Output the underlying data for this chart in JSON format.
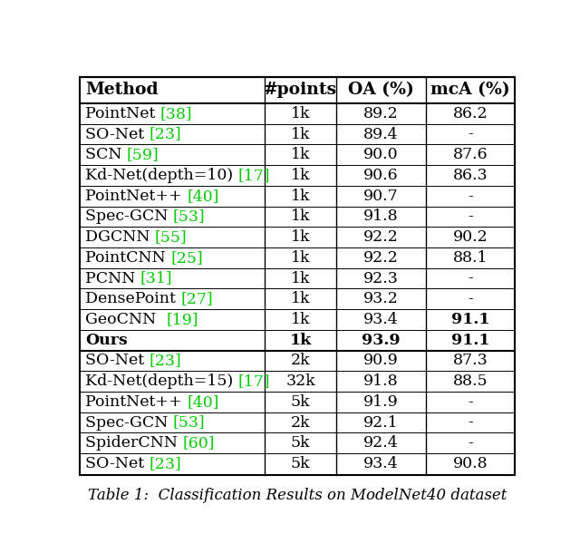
{
  "title": "Table 1:  Classification Results on ModelNet40 dataset",
  "headers": [
    "Method",
    "#points",
    "OA (%)",
    "mcA (%)"
  ],
  "section1": [
    {
      "method_black": "PointNet ",
      "method_green": "[38]",
      "points": "1k",
      "oa": "89.2",
      "mca": "86.2",
      "bold_method": false,
      "bold_points": false,
      "bold_oa": false,
      "bold_mca": false
    },
    {
      "method_black": "SO-Net ",
      "method_green": "[23]",
      "points": "1k",
      "oa": "89.4",
      "mca": "-",
      "bold_method": false,
      "bold_points": false,
      "bold_oa": false,
      "bold_mca": false
    },
    {
      "method_black": "SCN ",
      "method_green": "[59]",
      "points": "1k",
      "oa": "90.0",
      "mca": "87.6",
      "bold_method": false,
      "bold_points": false,
      "bold_oa": false,
      "bold_mca": false
    },
    {
      "method_black": "Kd-Net(depth=10) ",
      "method_green": "[17]",
      "points": "1k",
      "oa": "90.6",
      "mca": "86.3",
      "bold_method": false,
      "bold_points": false,
      "bold_oa": false,
      "bold_mca": false
    },
    {
      "method_black": "PointNet++ ",
      "method_green": "[40]",
      "points": "1k",
      "oa": "90.7",
      "mca": "-",
      "bold_method": false,
      "bold_points": false,
      "bold_oa": false,
      "bold_mca": false
    },
    {
      "method_black": "Spec-GCN ",
      "method_green": "[53]",
      "points": "1k",
      "oa": "91.8",
      "mca": "-",
      "bold_method": false,
      "bold_points": false,
      "bold_oa": false,
      "bold_mca": false
    },
    {
      "method_black": "DGCNN ",
      "method_green": "[55]",
      "points": "1k",
      "oa": "92.2",
      "mca": "90.2",
      "bold_method": false,
      "bold_points": false,
      "bold_oa": false,
      "bold_mca": false
    },
    {
      "method_black": "PointCNN ",
      "method_green": "[25]",
      "points": "1k",
      "oa": "92.2",
      "mca": "88.1",
      "bold_method": false,
      "bold_points": false,
      "bold_oa": false,
      "bold_mca": false
    },
    {
      "method_black": "PCNN ",
      "method_green": "[31]",
      "points": "1k",
      "oa": "92.3",
      "mca": "-",
      "bold_method": false,
      "bold_points": false,
      "bold_oa": false,
      "bold_mca": false
    },
    {
      "method_black": "DensePoint ",
      "method_green": "[27]",
      "points": "1k",
      "oa": "93.2",
      "mca": "-",
      "bold_method": false,
      "bold_points": false,
      "bold_oa": false,
      "bold_mca": false
    },
    {
      "method_black": "GeoCNN  ",
      "method_green": "[19]",
      "points": "1k",
      "oa": "93.4",
      "mca": "91.1",
      "bold_method": false,
      "bold_points": false,
      "bold_oa": false,
      "bold_mca": true
    },
    {
      "method_black": "Ours",
      "method_green": "",
      "points": "1k",
      "oa": "93.9",
      "mca": "91.1",
      "bold_method": true,
      "bold_points": true,
      "bold_oa": true,
      "bold_mca": true
    }
  ],
  "section2": [
    {
      "method_black": "SO-Net ",
      "method_green": "[23]",
      "points": "2k",
      "oa": "90.9",
      "mca": "87.3",
      "bold_method": false,
      "bold_points": false,
      "bold_oa": false,
      "bold_mca": false
    },
    {
      "method_black": "Kd-Net(depth=15) ",
      "method_green": "[17]",
      "points": "32k",
      "oa": "91.8",
      "mca": "88.5",
      "bold_method": false,
      "bold_points": false,
      "bold_oa": false,
      "bold_mca": false
    },
    {
      "method_black": "PointNet++ ",
      "method_green": "[40]",
      "points": "5k",
      "oa": "91.9",
      "mca": "-",
      "bold_method": false,
      "bold_points": false,
      "bold_oa": false,
      "bold_mca": false
    },
    {
      "method_black": "Spec-GCN ",
      "method_green": "[53]",
      "points": "2k",
      "oa": "92.1",
      "mca": "-",
      "bold_method": false,
      "bold_points": false,
      "bold_oa": false,
      "bold_mca": false
    },
    {
      "method_black": "SpiderCNN ",
      "method_green": "[60]",
      "points": "5k",
      "oa": "92.4",
      "mca": "-",
      "bold_method": false,
      "bold_points": false,
      "bold_oa": false,
      "bold_mca": false
    },
    {
      "method_black": "SO-Net ",
      "method_green": "[23]",
      "points": "5k",
      "oa": "93.4",
      "mca": "90.8",
      "bold_method": false,
      "bold_points": false,
      "bold_oa": false,
      "bold_mca": false
    }
  ],
  "font_size": 12.5,
  "header_font_size": 13.5,
  "caption_font_size": 12.0,
  "green_color": "#00cc00",
  "black_color": "#000000",
  "white_color": "#ffffff"
}
